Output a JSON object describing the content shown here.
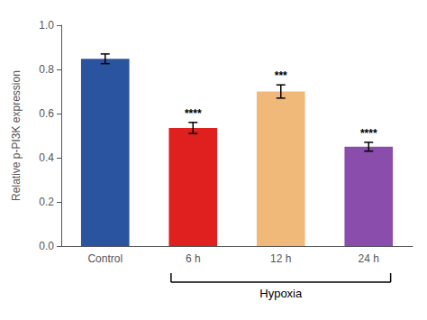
{
  "chart_data": {
    "type": "bar",
    "categories": [
      "Control",
      "6 h",
      "12 h",
      "24 h"
    ],
    "values": [
      0.848,
      0.535,
      0.7,
      0.45
    ],
    "errors": [
      0.022,
      0.025,
      0.03,
      0.02
    ],
    "colors": [
      "#2b54a0",
      "#e01f1f",
      "#f0b97a",
      "#8b4dab"
    ],
    "ylabel": "Relative p-PI3K expression",
    "ylim": [
      0.0,
      1.0
    ],
    "yticks": [
      {
        "value": 0.0,
        "label": "0.0"
      },
      0.2,
      0.4,
      0.6,
      0.8,
      {
        "value": 1.0,
        "label": "1.0"
      }
    ],
    "significance": [
      null,
      "****",
      "***",
      "****"
    ],
    "bracket": {
      "label": "Hypoxia",
      "categories": [
        "6 h",
        "12 h",
        "24 h"
      ]
    },
    "grid": false
  }
}
